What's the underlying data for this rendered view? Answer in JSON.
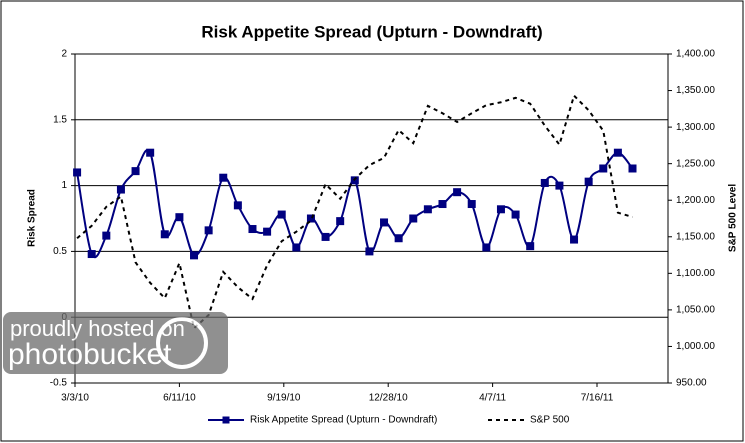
{
  "chart_data": {
    "type": "line",
    "title": "Risk Appetite Spread (Upturn - Downdraft)",
    "y_label": "Risk Spread",
    "y2_label": "S&P 500 Level",
    "x": [
      "3/5/10",
      "3/19/10",
      "4/2/10",
      "4/16/10",
      "4/30/10",
      "5/14/10",
      "5/28/10",
      "6/11/10",
      "6/25/10",
      "7/9/10",
      "7/23/10",
      "8/6/10",
      "8/20/10",
      "9/3/10",
      "9/17/10",
      "10/1/10",
      "10/15/10",
      "10/29/10",
      "11/12/10",
      "11/26/10",
      "12/10/10",
      "12/24/10",
      "1/7/11",
      "1/21/11",
      "2/4/11",
      "2/18/11",
      "3/4/11",
      "3/18/11",
      "4/1/11",
      "4/15/11",
      "4/29/11",
      "5/13/11",
      "5/27/11",
      "6/10/11",
      "6/24/11",
      "7/8/11",
      "7/22/11",
      "8/5/11",
      "8/19/11"
    ],
    "series": [
      {
        "name": "Risk Appetite Spread (Upturn - Downdraft)",
        "color": "#000080",
        "axis": "y",
        "marker": "square",
        "values": [
          1.1,
          0.48,
          0.62,
          0.97,
          1.11,
          1.25,
          0.63,
          0.76,
          0.47,
          0.66,
          1.06,
          0.85,
          0.67,
          0.65,
          0.78,
          0.53,
          0.75,
          0.61,
          0.73,
          1.04,
          0.5,
          0.72,
          0.6,
          0.75,
          0.82,
          0.86,
          0.95,
          0.86,
          0.53,
          0.82,
          0.78,
          0.54,
          1.02,
          1.0,
          0.59,
          1.03,
          1.13,
          1.25,
          1.13
        ]
      },
      {
        "name": "S&P 500",
        "color": "#000000",
        "axis": "y2",
        "dash": true,
        "values": [
          1148,
          1165,
          1191,
          1205,
          1115,
          1087,
          1066,
          1114,
          1025,
          1043,
          1102,
          1081,
          1065,
          1111,
          1144,
          1157,
          1172,
          1222,
          1202,
          1229,
          1248,
          1258,
          1296,
          1278,
          1329,
          1319,
          1307,
          1319,
          1330,
          1334,
          1340,
          1332,
          1302,
          1276,
          1343,
          1323,
          1295,
          1183,
          1177
        ]
      }
    ],
    "xlim": [
      "3/3/10",
      "9/22/11"
    ],
    "xticks": [
      "3/3/10",
      "6/11/10",
      "9/19/10",
      "12/28/10",
      "4/7/11",
      "7/16/11"
    ],
    "ylim": [
      -0.5,
      2
    ],
    "yticks": [
      -0.5,
      0,
      0.5,
      1,
      1.5,
      2
    ],
    "y2lim": [
      950,
      1400
    ],
    "y2ticks": [
      {
        "value": 950,
        "label": "950.00"
      },
      {
        "value": 1000,
        "label": "1,000.00"
      },
      {
        "value": 1050,
        "label": "1,050.00"
      },
      {
        "value": 1100,
        "label": "1,100.00"
      },
      {
        "value": 1150,
        "label": "1,150.00"
      },
      {
        "value": 1200,
        "label": "1,200.00"
      },
      {
        "value": 1250,
        "label": "1,250.00"
      },
      {
        "value": 1300,
        "label": "1,300.00"
      },
      {
        "value": 1350,
        "label": "1,350.00"
      },
      {
        "value": 1400,
        "label": "1,400.00"
      }
    ],
    "grid": true,
    "legend": "bottom"
  },
  "watermark": {
    "line1": "proudly hosted on",
    "line2": "photobucket"
  }
}
